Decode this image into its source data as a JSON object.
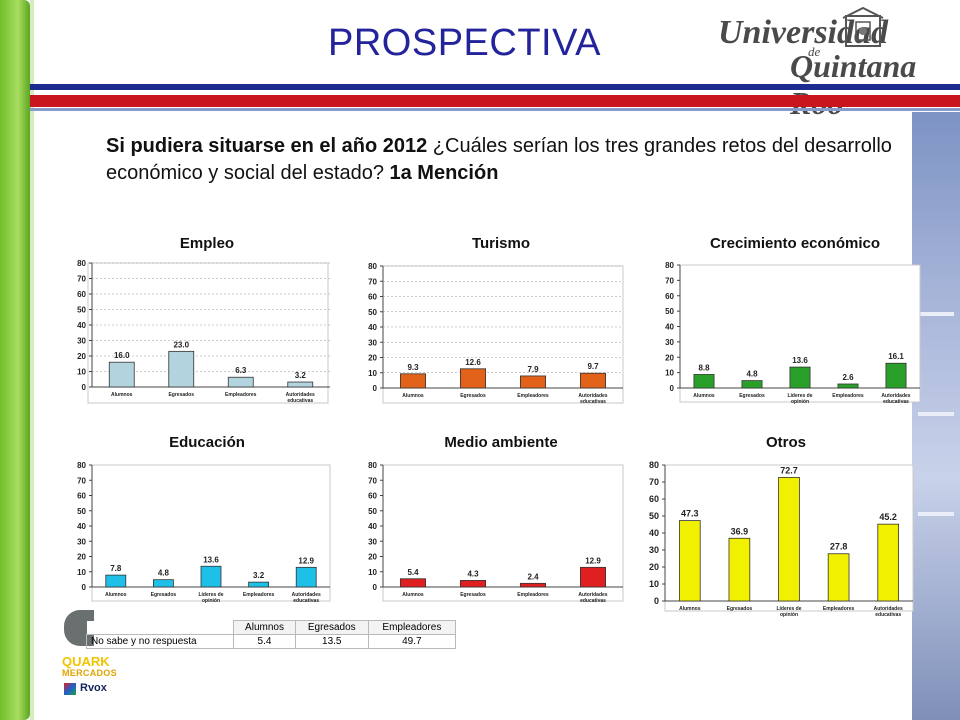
{
  "page_title": "PROSPECTIVA",
  "logo": {
    "line1": "Universidad",
    "line2": "de",
    "line3": "Quintana Roo"
  },
  "question": {
    "lead_bold": "Si pudiera situarse en el año 2012",
    "text": " ¿Cuáles serían los tres grandes retos del desarrollo económico y social del estado? ",
    "tail_bold": "1a Mención"
  },
  "chart_data": [
    {
      "type": "bar",
      "title": "Empleo",
      "categories": [
        "Alumnos",
        "Egresados",
        "Empleadores",
        "Autoridades educativas"
      ],
      "values": [
        16.0,
        23.0,
        6.3,
        3.2
      ],
      "value_labels": [
        "16.0",
        "23.0",
        "6.3",
        "3.2"
      ],
      "ylim": [
        0,
        80
      ],
      "yticks": [
        0,
        10,
        20,
        30,
        40,
        50,
        60,
        70,
        80
      ],
      "grid": true,
      "colors": [
        "#b3d3df"
      ]
    },
    {
      "type": "bar",
      "title": "Turismo",
      "categories": [
        "Alumnos",
        "Egresados",
        "Empleadores",
        "Autoridades educativas"
      ],
      "values": [
        9.3,
        12.6,
        7.9,
        9.7
      ],
      "value_labels": [
        "9.3",
        "12.6",
        "7.9",
        "9.7"
      ],
      "ylim": [
        0,
        80
      ],
      "yticks": [
        0,
        10,
        20,
        30,
        40,
        50,
        60,
        70,
        80
      ],
      "grid": true,
      "colors": [
        "#e2621a"
      ]
    },
    {
      "type": "bar",
      "title": "Crecimiento económico",
      "categories": [
        "Alumnos",
        "Egresados",
        "Líderes de opinión",
        "Empleadores",
        "Autoridades educativas"
      ],
      "values": [
        8.8,
        4.8,
        13.6,
        2.6,
        16.1
      ],
      "value_labels": [
        "8.8",
        "4.8",
        "13.6",
        "2.6",
        "16.1"
      ],
      "ylim": [
        0,
        80
      ],
      "yticks": [
        0,
        10,
        20,
        30,
        40,
        50,
        60,
        70,
        80
      ],
      "grid": false,
      "colors": [
        "#2aa02a"
      ]
    },
    {
      "type": "bar",
      "title": "Educación",
      "categories": [
        "Alumnos",
        "Egresados",
        "Líderes de opinión",
        "Empleadores",
        "Autoridades educativas"
      ],
      "values": [
        7.8,
        4.8,
        13.6,
        3.2,
        12.9
      ],
      "value_labels": [
        "7.8",
        "4.8",
        "13.6",
        "3.2",
        "12.9"
      ],
      "ylim": [
        0,
        80
      ],
      "yticks": [
        0,
        10,
        20,
        30,
        40,
        50,
        60,
        70,
        80
      ],
      "grid": false,
      "colors": [
        "#1ec0e8"
      ]
    },
    {
      "type": "bar",
      "title": "Medio ambiente",
      "categories": [
        "Alumnos",
        "Egresados",
        "Empleadores",
        "Autoridades educativas"
      ],
      "values": [
        5.4,
        4.3,
        2.4,
        12.9
      ],
      "value_labels": [
        "5.4",
        "4.3",
        "2.4",
        "12.9"
      ],
      "ylim": [
        0,
        80
      ],
      "yticks": [
        0,
        10,
        20,
        30,
        40,
        50,
        60,
        70,
        80
      ],
      "grid": false,
      "colors": [
        "#e02020"
      ]
    },
    {
      "type": "bar",
      "title": "Otros",
      "categories": [
        "Alumnos",
        "Egresados",
        "Líderes de opinión",
        "Empleadores",
        "Autoridades educativas"
      ],
      "values": [
        47.3,
        36.9,
        72.7,
        27.8,
        45.2
      ],
      "value_labels": [
        "47.3",
        "36.9",
        "72.7",
        "27.8",
        "45.2"
      ],
      "ylim": [
        0,
        80
      ],
      "yticks": [
        0,
        10,
        20,
        30,
        40,
        50,
        60,
        70,
        80
      ],
      "grid": false,
      "colors": [
        "#f0f000"
      ]
    }
  ],
  "table": {
    "headers": [
      "",
      "Alumnos",
      "Egresados",
      "Empleadores"
    ],
    "rows": [
      [
        "No sabe y no respuesta",
        "5.4",
        "13.5",
        "49.7"
      ]
    ]
  },
  "brand": {
    "line1": "QUARK",
    "line2": "MERCADOS",
    "line3": "Rvox"
  }
}
